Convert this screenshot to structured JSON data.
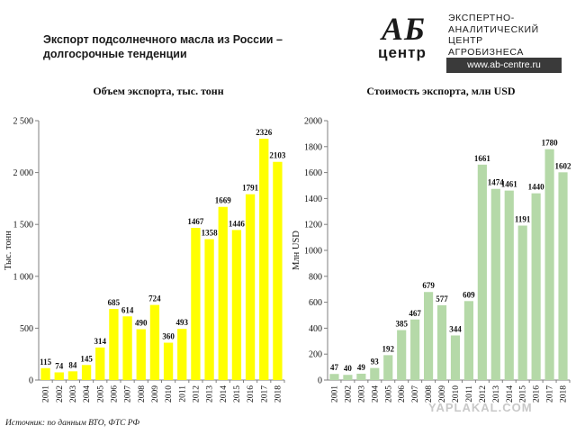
{
  "page": {
    "title": "Экспорт подсолнечного масла из России – долгосрочные тенденции",
    "source": "Источник: по данным ВТО, ФТС РФ",
    "watermark": "YAPLAKAL.COM"
  },
  "logo": {
    "ab": "АБ",
    "centr": "центр",
    "line1": "ЭКСПЕРТНО-",
    "line2": "АНАЛИТИЧЕСКИЙ",
    "line3": "ЦЕНТР",
    "line4": "АГРОБИЗНЕСА",
    "url": "www.ab-centre.ru"
  },
  "chart_data": [
    {
      "type": "bar",
      "title": "Объем экспорта, тыс. тонн",
      "ylabel": "Тыс. тонн",
      "xlabel": "",
      "ylim": [
        0,
        2500
      ],
      "yticks": [
        0,
        500,
        1000,
        1500,
        2000,
        2500
      ],
      "ytick_labels": [
        "0",
        "500",
        "1 000",
        "1 500",
        "2 000",
        "2 500"
      ],
      "grid": false,
      "color": "#ffff00",
      "categories": [
        "2001",
        "2002",
        "2003",
        "2004",
        "2005",
        "2006",
        "2007",
        "2008",
        "2009",
        "2010",
        "2011",
        "2012",
        "2013",
        "2014",
        "2015",
        "2016",
        "2017",
        "2018"
      ],
      "values": [
        115,
        74,
        84,
        145,
        314,
        685,
        614,
        490,
        724,
        360,
        493,
        1467,
        1358,
        1669,
        1446,
        1791,
        2326,
        2103
      ]
    },
    {
      "type": "bar",
      "title": "Стоимость экспорта, млн USD",
      "ylabel": "Млн USD",
      "xlabel": "",
      "ylim": [
        0,
        2000
      ],
      "yticks": [
        0,
        200,
        400,
        600,
        800,
        1000,
        1200,
        1400,
        1600,
        1800,
        2000
      ],
      "ytick_labels": [
        "0",
        "200",
        "400",
        "600",
        "800",
        "1000",
        "1200",
        "1400",
        "1600",
        "1800",
        "2000"
      ],
      "grid": false,
      "color": "#b5d9a8",
      "categories": [
        "2001",
        "2002",
        "2003",
        "2004",
        "2005",
        "2006",
        "2007",
        "2008",
        "2009",
        "2010",
        "2011",
        "2012",
        "2013",
        "2014",
        "2015",
        "2016",
        "2017",
        "2018"
      ],
      "values": [
        47,
        40,
        49,
        93,
        192,
        385,
        467,
        679,
        577,
        344,
        609,
        1661,
        1474,
        1461,
        1191,
        1440,
        1780,
        1602
      ]
    }
  ]
}
